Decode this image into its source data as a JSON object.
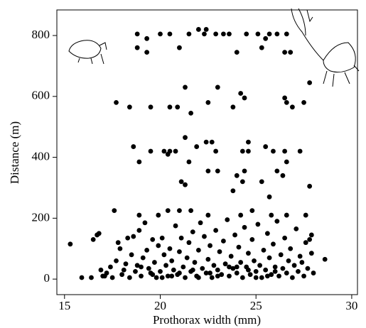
{
  "chart_data": {
    "type": "scatter",
    "x_label": "Prothorax width (mm)",
    "y_label": "Distance (m)",
    "color": "#000000",
    "xlim": [
      14.6,
      30.3
    ],
    "xticks": [
      15,
      20,
      25,
      30
    ],
    "ylim": [
      -51,
      884
    ],
    "yticks": [
      0,
      200,
      400,
      600,
      800
    ],
    "grid": false,
    "x": [
      18.8,
      19.3,
      20.0,
      20.5,
      21.5,
      22.0,
      22.4,
      22.3,
      22.9,
      23.3,
      23.6,
      24.5,
      25.1,
      25.5,
      25.7,
      26.1,
      26.6,
      18.8,
      19.3,
      21.0,
      24.0,
      25.3,
      26.5,
      26.8,
      27.8,
      21.3,
      23.0,
      24.2,
      26.5,
      17.7,
      22.5,
      24.4,
      26.6,
      27.5,
      18.4,
      19.5,
      20.5,
      20.9,
      23.8,
      26.9,
      21.6,
      21.3,
      22.4,
      22.7,
      24.6,
      18.6,
      21.9,
      25.5,
      19.5,
      20.2,
      20.5,
      20.8,
      22.9,
      24.3,
      24.6,
      25.9,
      26.5,
      27.3,
      20.4,
      18.9,
      21.5,
      26.6,
      22.5,
      23.0,
      24.4,
      26.1,
      24.0,
      26.4,
      21.1,
      24.3,
      25.3,
      21.3,
      23.8,
      25.7,
      27.8,
      17.6,
      20.4,
      21.0,
      21.6,
      24.8,
      18.9,
      19.9,
      22.5,
      24.2,
      25.8,
      26.6,
      27.6,
      15.3,
      15.9,
      16.4,
      16.5,
      16.7,
      16.8,
      16.9,
      17.0,
      17.2,
      17.4,
      17.5,
      17.7,
      17.8,
      17.9,
      18.0,
      18.1,
      18.2,
      18.3,
      18.4,
      18.5,
      18.6,
      18.7,
      18.8,
      18.9,
      19.0,
      19.1,
      19.2,
      19.3,
      19.4,
      19.5,
      19.6,
      19.7,
      19.8,
      19.9,
      20.0,
      20.1,
      20.2,
      20.3,
      20.4,
      20.5,
      20.6,
      20.7,
      20.8,
      20.9,
      21.0,
      21.1,
      21.2,
      21.3,
      21.4,
      21.5,
      21.6,
      21.7,
      21.8,
      21.9,
      22.0,
      22.1,
      22.2,
      22.3,
      22.4,
      22.5,
      22.6,
      22.7,
      22.8,
      22.9,
      23.0,
      23.1,
      23.2,
      23.3,
      23.4,
      23.5,
      23.6,
      23.7,
      23.8,
      23.9,
      24.0,
      24.1,
      24.2,
      24.3,
      24.4,
      24.5,
      24.6,
      24.7,
      24.8,
      24.9,
      25.0,
      25.1,
      25.2,
      25.3,
      25.4,
      25.5,
      25.6,
      25.7,
      25.8,
      25.9,
      26.0,
      26.1,
      26.2,
      26.3,
      26.4,
      26.5,
      26.6,
      26.7,
      26.8,
      26.9,
      27.0,
      27.1,
      27.2,
      27.3,
      27.4,
      27.5,
      27.6,
      27.7,
      27.8,
      27.9,
      28.0,
      28.6,
      27.9,
      17.1,
      19.0,
      20.1,
      21.0,
      22.0,
      23.0,
      24.0,
      25.0,
      26.0,
      21.7,
      22.6,
      23.6,
      24.6,
      25.6,
      20.6,
      19.6
    ],
    "values": [
      805,
      790,
      805,
      805,
      805,
      820,
      820,
      805,
      805,
      805,
      805,
      805,
      805,
      790,
      805,
      805,
      805,
      760,
      745,
      760,
      745,
      760,
      745,
      745,
      645,
      630,
      630,
      610,
      595,
      580,
      580,
      595,
      580,
      580,
      565,
      565,
      565,
      565,
      565,
      565,
      545,
      465,
      450,
      450,
      450,
      435,
      435,
      435,
      420,
      420,
      420,
      420,
      420,
      420,
      420,
      420,
      420,
      420,
      410,
      385,
      385,
      385,
      355,
      355,
      355,
      355,
      340,
      340,
      320,
      320,
      320,
      310,
      290,
      270,
      305,
      225,
      225,
      225,
      225,
      225,
      210,
      210,
      210,
      210,
      210,
      210,
      210,
      115,
      5,
      5,
      130,
      145,
      150,
      30,
      10,
      20,
      40,
      5,
      60,
      120,
      100,
      15,
      30,
      50,
      135,
      5,
      80,
      140,
      25,
      45,
      160,
      10,
      70,
      185,
      95,
      35,
      20,
      130,
      55,
      5,
      110,
      25,
      135,
      80,
      45,
      10,
      100,
      60,
      30,
      175,
      15,
      90,
      135,
      40,
      5,
      70,
      120,
      25,
      155,
      55,
      10,
      95,
      185,
      35,
      140,
      20,
      65,
      110,
      5,
      45,
      160,
      30,
      90,
      15,
      125,
      50,
      195,
      10,
      75,
      35,
      145,
      20,
      105,
      55,
      5,
      170,
      40,
      85,
      15,
      130,
      60,
      25,
      180,
      45,
      5,
      95,
      30,
      150,
      70,
      15,
      115,
      40,
      190,
      10,
      80,
      35,
      135,
      20,
      60,
      100,
      5,
      45,
      165,
      25,
      75,
      55,
      10,
      120,
      35,
      130,
      85,
      20,
      65,
      145,
      10,
      40,
      5,
      20,
      5,
      10,
      40,
      5,
      25,
      30,
      20,
      40,
      30,
      10,
      10,
      15
    ]
  }
}
